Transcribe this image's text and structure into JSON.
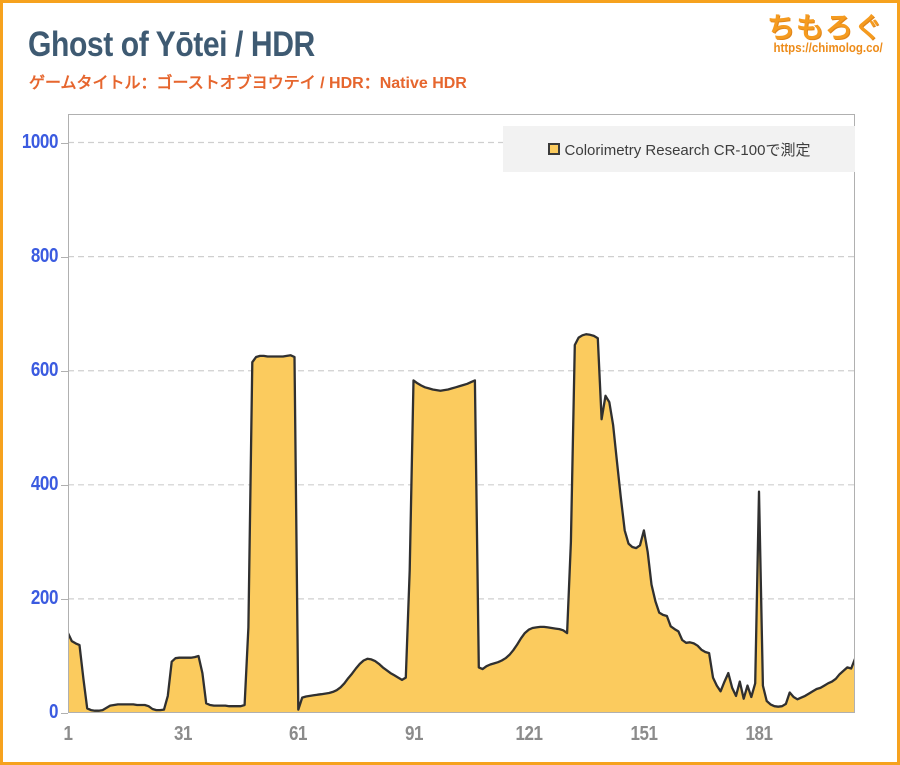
{
  "header": {
    "title": "Ghost of Yōtei / HDR",
    "subtitle": "ゲームタイトル：ゴーストオブヨウテイ / HDR：Native HDR",
    "logo_text": "ちもろぐ",
    "logo_url": "https://chimolog.co/"
  },
  "legend": {
    "label": "Colorimetry Research CR-100で測定"
  },
  "colors": {
    "frame_border": "#f6a21e",
    "title": "#3e5a72",
    "subtitle": "#e6662e",
    "logo": "#f59b1f",
    "y_axis_labels": "#3b5be0",
    "x_axis_labels": "#8b8b8b",
    "gridline": "#cfcfcf",
    "plot_border": "#b0b0b0",
    "area_fill": "#fbcb5e",
    "area_stroke": "#303030",
    "legend_bg": "#f2f2f2"
  },
  "chart_data": {
    "type": "area",
    "title": "Ghost of Yōtei / HDR",
    "xlabel": "",
    "ylabel": "",
    "x_start": 1,
    "x_step": 1,
    "x_ticks": [
      1,
      31,
      61,
      91,
      121,
      151,
      181
    ],
    "y_ticks": [
      0,
      200,
      400,
      600,
      800,
      1000
    ],
    "ylim": [
      0,
      1050
    ],
    "grid": "dashed-horizontal",
    "legend_position": "top-right",
    "series": [
      {
        "name": "Colorimetry Research CR-100で測定",
        "values": [
          140,
          126,
          122,
          119,
          60,
          8,
          5,
          4,
          4,
          5,
          9,
          13,
          14,
          15,
          15,
          15,
          15,
          15,
          14,
          14,
          14,
          12,
          7,
          5,
          5,
          6,
          30,
          90,
          96,
          97,
          97,
          97,
          97,
          98,
          100,
          70,
          17,
          14,
          13,
          13,
          13,
          13,
          12,
          12,
          12,
          12,
          14,
          150,
          615,
          624,
          626,
          626,
          625,
          625,
          625,
          625,
          625,
          626,
          627,
          624,
          6,
          27,
          29,
          30,
          31,
          32,
          33,
          34,
          35,
          37,
          40,
          45,
          52,
          61,
          69,
          78,
          86,
          92,
          95,
          94,
          91,
          86,
          80,
          75,
          70,
          66,
          62,
          58,
          62,
          250,
          583,
          578,
          574,
          571,
          569,
          567,
          566,
          565,
          566,
          567,
          569,
          571,
          573,
          575,
          577,
          580,
          583,
          80,
          77,
          82,
          85,
          87,
          89,
          92,
          96,
          102,
          110,
          120,
          131,
          140,
          146,
          149,
          150,
          151,
          151,
          150,
          149,
          148,
          147,
          145,
          140,
          300,
          645,
          658,
          662,
          664,
          663,
          661,
          657,
          515,
          556,
          545,
          505,
          440,
          378,
          320,
          297,
          291,
          289,
          294,
          320,
          282,
          225,
          196,
          176,
          172,
          170,
          152,
          147,
          143,
          128,
          123,
          124,
          122,
          118,
          111,
          107,
          105,
          62,
          48,
          38,
          55,
          70,
          44,
          30,
          55,
          25,
          48,
          28,
          52,
          388,
          48,
          21,
          15,
          12,
          11,
          12,
          16,
          36,
          28,
          24,
          27,
          30,
          34,
          38,
          42,
          44,
          48,
          52,
          55,
          60,
          68,
          74,
          80,
          78,
          95
        ]
      }
    ]
  }
}
